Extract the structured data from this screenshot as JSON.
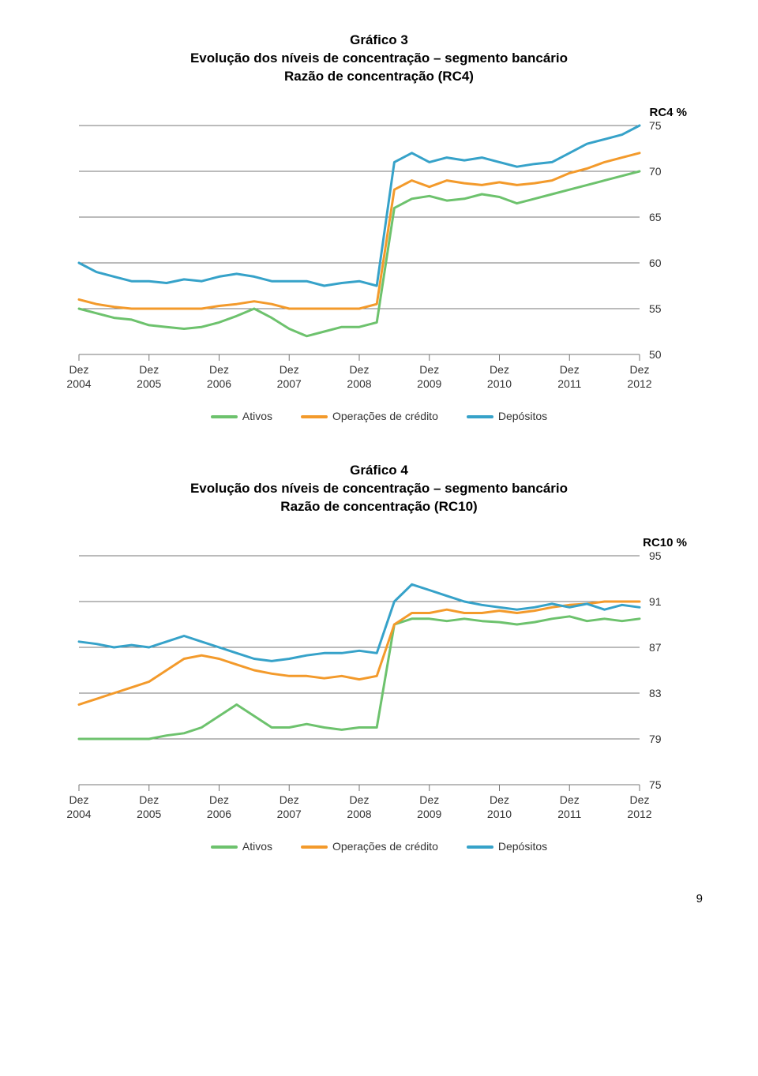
{
  "page_number": "9",
  "legend_labels": {
    "ativos": "Ativos",
    "credito": "Operações de crédito",
    "depositos": "Depósitos"
  },
  "colors": {
    "ativos": "#6dc26d",
    "credito": "#f39a2b",
    "depositos": "#36a2c9",
    "grid": "#777777",
    "text": "#333333",
    "bg": "#ffffff"
  },
  "line_width": 3,
  "chart3": {
    "title_line1": "Gráfico 3",
    "title_line2": "Evolução dos níveis de concentração – segmento bancário",
    "title_line3": "Razão de concentração (RC4)",
    "y_title": "RC4 %",
    "ylim": [
      50,
      75
    ],
    "ytick_step": 5,
    "xticks": [
      "Dez\n2004",
      "Dez\n2005",
      "Dez\n2006",
      "Dez\n2007",
      "Dez\n2008",
      "Dez\n2009",
      "Dez\n2010",
      "Dez\n2011",
      "Dez\n2012"
    ],
    "n_points": 33,
    "series": {
      "ativos": [
        55,
        54.5,
        54,
        53.8,
        53.2,
        53.0,
        52.8,
        53,
        53.5,
        54.2,
        55,
        54,
        52.8,
        52,
        52.5,
        53,
        53,
        53.5,
        66,
        67,
        67.3,
        66.8,
        67,
        67.5,
        67.2,
        66.5,
        67,
        67.5,
        68,
        68.5,
        69,
        69.5,
        70
      ],
      "credito": [
        56,
        55.5,
        55.2,
        55,
        55,
        55,
        55,
        55,
        55.3,
        55.5,
        55.8,
        55.5,
        55,
        55,
        55,
        55,
        55,
        55.5,
        68,
        69,
        68.3,
        69,
        68.7,
        68.5,
        68.8,
        68.5,
        68.7,
        69,
        69.8,
        70.3,
        71,
        71.5,
        72
      ],
      "depositos": [
        60,
        59,
        58.5,
        58,
        58,
        57.8,
        58.2,
        58,
        58.5,
        58.8,
        58.5,
        58,
        58,
        58,
        57.5,
        57.8,
        58,
        57.5,
        71,
        72,
        71,
        71.5,
        71.2,
        71.5,
        71,
        70.5,
        70.8,
        71,
        72,
        73,
        73.5,
        74,
        75
      ]
    }
  },
  "chart4": {
    "title_line1": "Gráfico 4",
    "title_line2": "Evolução dos níveis de concentração – segmento bancário",
    "title_line3": "Razão de concentração (RC10)",
    "y_title": "RC10 %",
    "ylim": [
      75,
      95
    ],
    "ytick_step": 4,
    "xticks": [
      "Dez\n2004",
      "Dez\n2005",
      "Dez\n2006",
      "Dez\n2007",
      "Dez\n2008",
      "Dez\n2009",
      "Dez\n2010",
      "Dez\n2011",
      "Dez\n2012"
    ],
    "n_points": 33,
    "series": {
      "ativos": [
        79,
        79,
        79,
        79,
        79,
        79.3,
        79.5,
        80,
        81,
        82,
        81,
        80,
        80,
        80.3,
        80,
        79.8,
        80,
        80,
        89,
        89.5,
        89.5,
        89.3,
        89.5,
        89.3,
        89.2,
        89,
        89.2,
        89.5,
        89.7,
        89.3,
        89.5,
        89.3,
        89.5
      ],
      "credito": [
        82,
        82.5,
        83,
        83.5,
        84,
        85,
        86,
        86.3,
        86,
        85.5,
        85,
        84.7,
        84.5,
        84.5,
        84.3,
        84.5,
        84.2,
        84.5,
        89,
        90,
        90,
        90.3,
        90,
        90,
        90.2,
        90,
        90.2,
        90.5,
        90.7,
        90.8,
        91,
        91,
        91
      ],
      "depositos": [
        87.5,
        87.3,
        87,
        87.2,
        87,
        87.5,
        88,
        87.5,
        87,
        86.5,
        86,
        85.8,
        86,
        86.3,
        86.5,
        86.5,
        86.7,
        86.5,
        91,
        92.5,
        92,
        91.5,
        91,
        90.7,
        90.5,
        90.3,
        90.5,
        90.8,
        90.5,
        90.8,
        90.3,
        90.7,
        90.5
      ]
    }
  }
}
